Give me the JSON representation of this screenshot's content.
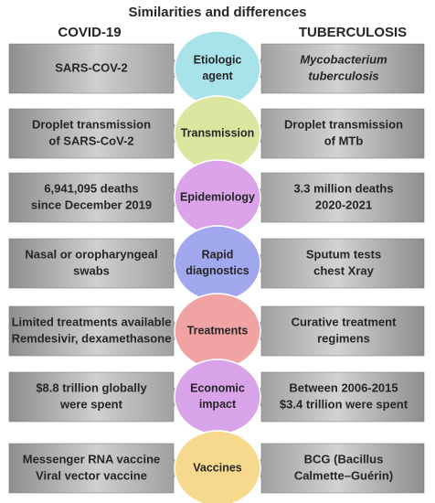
{
  "title": "Similarities and differences",
  "left_header": "COVID-19",
  "right_header": "TUBERCULOSIS",
  "rows": [
    {
      "label": [
        "Etiologic",
        "agent"
      ],
      "color": "#a9e3ea",
      "left": [
        "SARS-COV-2"
      ],
      "right": [
        "Mycobacterium",
        "tuberculosis"
      ],
      "right_style": "italic"
    },
    {
      "label": [
        "Transmission"
      ],
      "color": "#dbe6a0",
      "left": [
        "Droplet transmission",
        "of SARS-CoV-2"
      ],
      "right": [
        "Droplet transmission",
        "of MTb"
      ]
    },
    {
      "label": [
        "Epidemiology"
      ],
      "color": "#dba3ea",
      "left": [
        "6,941,095 deaths",
        "since December 2019"
      ],
      "right": [
        "3.3 million deaths",
        "2020-2021"
      ]
    },
    {
      "label": [
        "Rapid",
        "diagnostics"
      ],
      "color": "#a1a8ee",
      "left": [
        "Nasal or oropharyngeal",
        "swabs"
      ],
      "right": [
        "Sputum tests",
        "chest Xray"
      ]
    },
    {
      "label": [
        "Treatments"
      ],
      "color": "#f1a3a3",
      "left": [
        "Limited treatments available",
        "Remdesivir, dexamethasone"
      ],
      "right": [
        "Curative treatment",
        "regimens"
      ]
    },
    {
      "label": [
        "Economic",
        "impact"
      ],
      "color": "#d9a3ea",
      "left": [
        "$8.8 trillion globally",
        "were spent"
      ],
      "right": [
        "Between 2006-2015",
        "$3.4 trillion were spent"
      ]
    },
    {
      "label": [
        "Vaccines"
      ],
      "color": "#f6d98c",
      "left": [
        "Messenger RNA vaccine",
        "Viral vector vaccine"
      ],
      "right": [
        "BCG (Bacillus",
        "Calmette–Guérin)"
      ]
    }
  ]
}
